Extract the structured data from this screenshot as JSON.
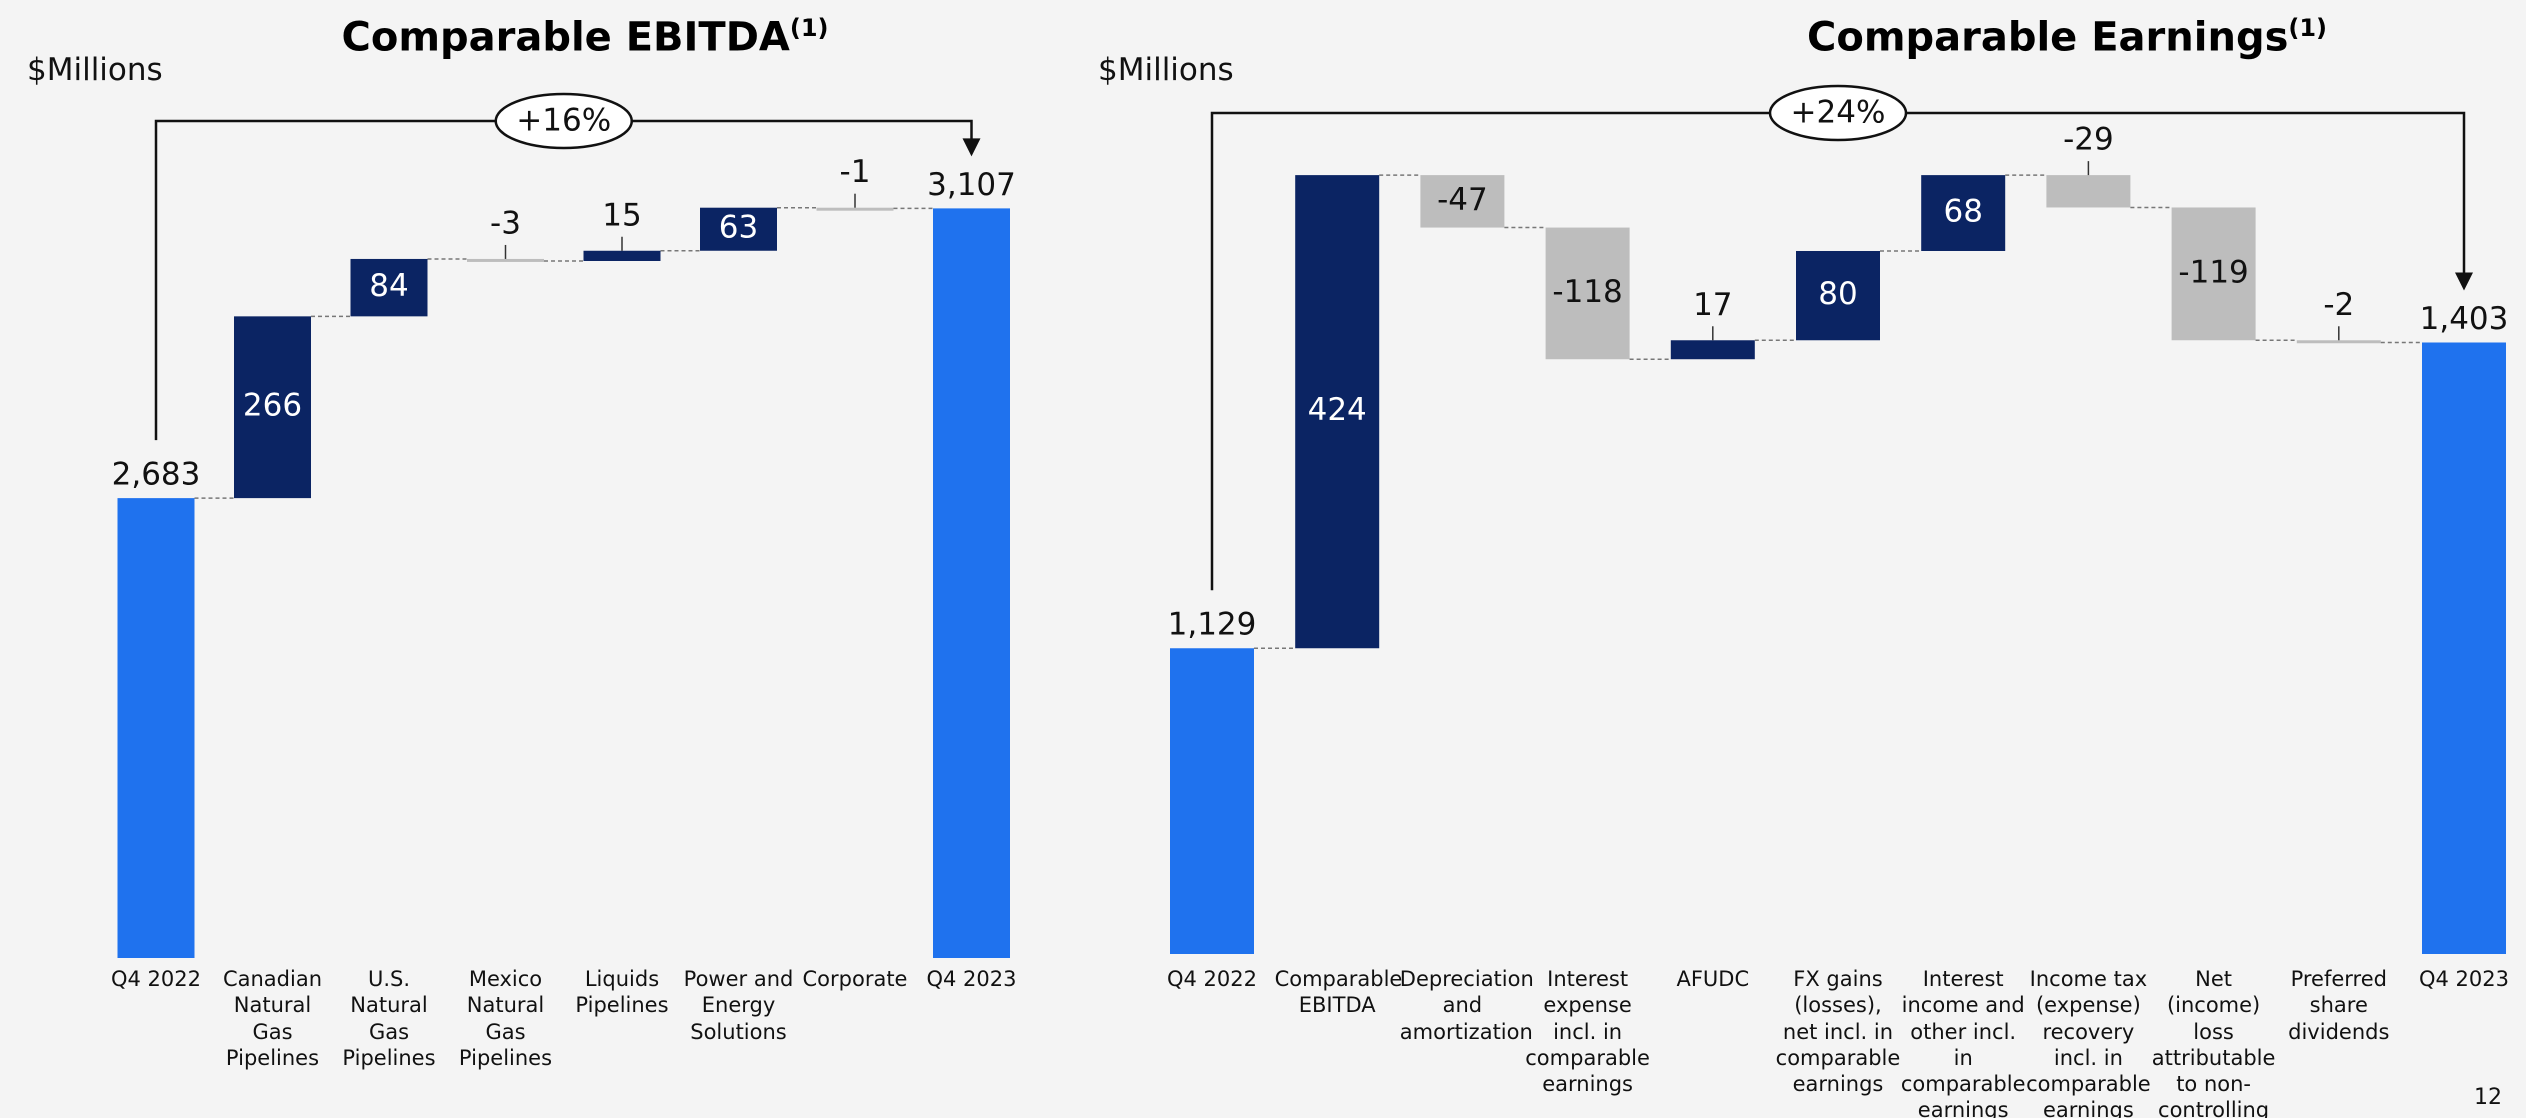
{
  "chart_data": [
    {
      "type": "waterfall",
      "title": "Comparable EBITDA",
      "title_note": "(1)",
      "unit_label": "$Millions",
      "annotation": "+16%",
      "categories": [
        "Q4 2022",
        "Canadian Natural Gas Pipelines",
        "U.S. Natural Gas Pipelines",
        "Mexico Natural Gas Pipelines",
        "Liquids Pipelines",
        "Power and Energy Solutions",
        "Corporate",
        "Q4 2023"
      ],
      "measures": [
        "absolute",
        "relative",
        "relative",
        "relative",
        "relative",
        "relative",
        "relative",
        "absolute"
      ],
      "values": [
        2683,
        266,
        84,
        -3,
        15,
        63,
        -1,
        3107
      ],
      "value_labels": [
        "2,683",
        "266",
        "84",
        "-3",
        "15",
        "63",
        "-1",
        "3,107"
      ],
      "colors": {
        "total": "#1f72ee",
        "increase": "#0b2463",
        "decrease": "#bdbdbd"
      },
      "ylim": [
        2010,
        3270
      ]
    },
    {
      "type": "waterfall",
      "title": "Comparable Earnings",
      "title_note": "(1)",
      "unit_label": "$Millions",
      "annotation": "+24%",
      "categories": [
        "Q4 2022",
        "Comparable EBITDA",
        "Depreciation and amortization",
        "Interest expense incl. in comparable earnings",
        "AFUDC",
        "FX gains (losses), net incl. in comparable earnings",
        "Interest income and other incl. in comparable earnings",
        "Income tax (expense) recovery incl. in comparable earnings",
        "Net (income) loss attributable to non-controlling interests",
        "Preferred share dividends",
        "Q4 2023"
      ],
      "measures": [
        "absolute",
        "relative",
        "relative",
        "relative",
        "relative",
        "relative",
        "relative",
        "relative",
        "relative",
        "relative",
        "absolute"
      ],
      "values": [
        1129,
        424,
        -47,
        -118,
        17,
        80,
        68,
        -29,
        -119,
        -2,
        1403
      ],
      "value_labels": [
        "1,129",
        "424",
        "-47",
        "-118",
        "17",
        "80",
        "68",
        "-29",
        "-119",
        "-2",
        "1,403"
      ],
      "colors": {
        "total": "#1f72ee",
        "increase": "#0b2463",
        "decrease": "#bdbdbd"
      },
      "ylim": [
        855,
        1623
      ]
    }
  ],
  "page_number": "12"
}
